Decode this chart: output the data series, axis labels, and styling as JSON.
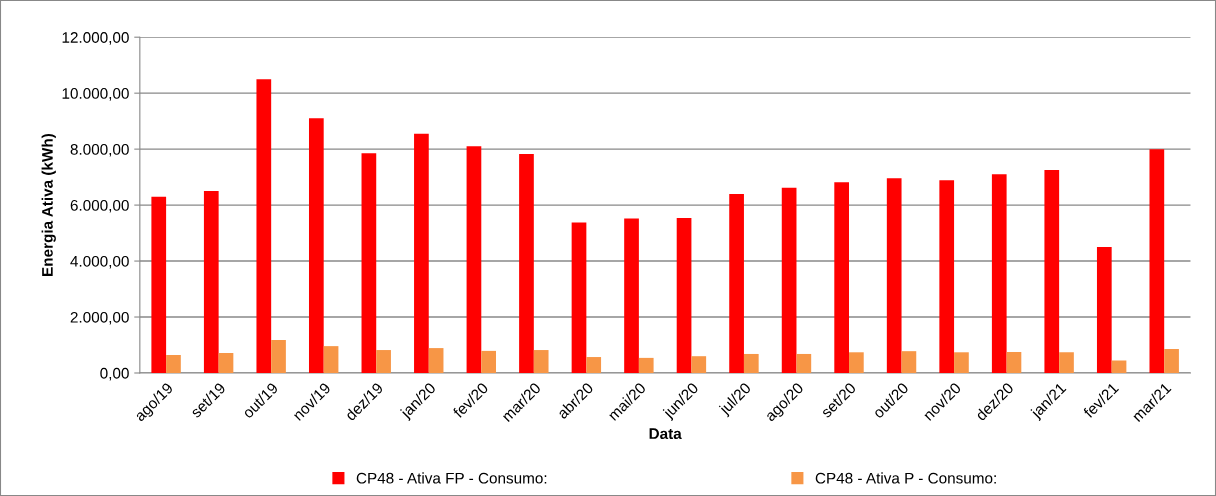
{
  "chart_data": {
    "type": "bar",
    "xlabel": "Data",
    "ylabel": "Energia Ativa (kWh)",
    "categories": [
      "ago/19",
      "set/19",
      "out/19",
      "nov/19",
      "dez/19",
      "jan/20",
      "fev/20",
      "mar/20",
      "abr/20",
      "mai/20",
      "jun/20",
      "jul/20",
      "ago/20",
      "set/20",
      "out/20",
      "nov/20",
      "dez/20",
      "jan/21",
      "fev/21",
      "mar/21"
    ],
    "series": [
      {
        "name": "CP48 - Ativa FP - Consumo:",
        "color": "#ff0000",
        "values": [
          6300,
          6500,
          10500,
          9100,
          7850,
          8550,
          8100,
          7830,
          5380,
          5520,
          5540,
          6400,
          6620,
          6820,
          6960,
          6890,
          7100,
          7250,
          4500,
          8000
        ]
      },
      {
        "name": "CP48 - Ativa P - Consumo:",
        "color": "#f79646",
        "values": [
          640,
          710,
          1180,
          960,
          820,
          890,
          790,
          820,
          570,
          540,
          600,
          680,
          680,
          740,
          780,
          740,
          750,
          740,
          450,
          860
        ]
      }
    ],
    "ylim": [
      0,
      12000
    ],
    "yticks": [
      {
        "value": 0,
        "label": "0,00"
      },
      {
        "value": 2000,
        "label": "2.000,00"
      },
      {
        "value": 4000,
        "label": "4.000,00"
      },
      {
        "value": 6000,
        "label": "6.000,00"
      },
      {
        "value": 8000,
        "label": "8.000,00"
      },
      {
        "value": 10000,
        "label": "10.000,00"
      },
      {
        "value": 12000,
        "label": "12.000,00"
      }
    ],
    "grid": "y",
    "legend": "bottom"
  }
}
